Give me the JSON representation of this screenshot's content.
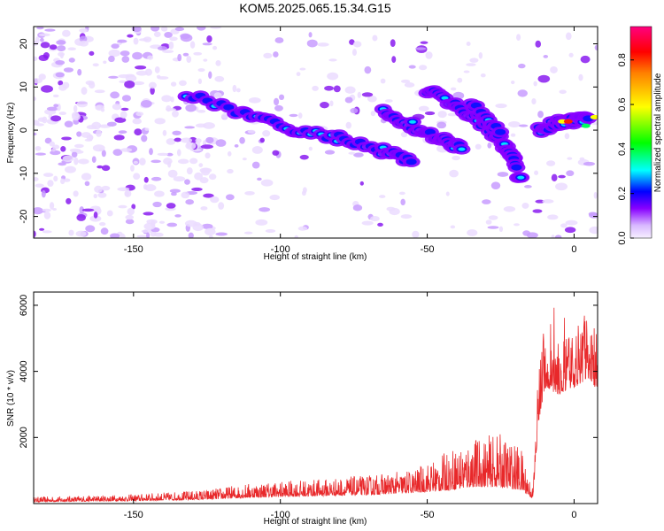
{
  "title": "KOM5.2025.065.15.34.G15",
  "colors": {
    "line": "#e8282a",
    "spectrogram_low": "#e8d4ff",
    "spectrogram_mid": "#7a00e6",
    "spectrogram_high": "#0000ff"
  },
  "chart_data": [
    {
      "type": "heatmap",
      "xlabel": "Height of straight line (km)",
      "ylabel": "Frequency (Hz)",
      "xlim": [
        -184,
        8
      ],
      "ylim": [
        -25,
        24
      ],
      "x_ticks": [
        -150,
        -100,
        -50,
        0
      ],
      "y_ticks": [
        -20,
        -10,
        0,
        10,
        20
      ],
      "colorbar": {
        "label": "Normalized spectral amplitude",
        "range": [
          0,
          0.95
        ],
        "ticks": [
          0.0,
          0.2,
          0.4,
          0.6,
          0.8
        ],
        "tick_labels": [
          "0.0",
          "0.2",
          "0.4",
          "0.6",
          "0.8"
        ],
        "colormap": "rainbow (pale violet - purple - blue - cyan - green - yellow - orange - red - magenta)"
      },
      "features": [
        {
          "name": "descending trace 1",
          "x": [
            -132,
            -112,
            -95,
            -80,
            -65,
            -55
          ],
          "freq": [
            8,
            4,
            0,
            -2,
            -5,
            -7
          ]
        },
        {
          "name": "descending trace 2",
          "x": [
            -65,
            -55,
            -45,
            -38
          ],
          "freq": [
            4,
            1,
            -2,
            -4
          ]
        },
        {
          "name": "descending trace 3",
          "x": [
            -50,
            -40,
            -30,
            -20
          ],
          "freq": [
            9,
            6,
            1,
            -6
          ]
        },
        {
          "name": "descending trace 4",
          "x": [
            -35,
            -28,
            -22,
            -18
          ],
          "freq": [
            6,
            2,
            -5,
            -12
          ]
        },
        {
          "name": "strong band near 0",
          "x": [
            -12,
            -5,
            0,
            5
          ],
          "freq": [
            0,
            2,
            2,
            3
          ]
        }
      ]
    },
    {
      "type": "line",
      "xlabel": "Height of straight line (km)",
      "ylabel": "SNR (10 * v/v)",
      "xlim": [
        -184,
        8
      ],
      "ylim": [
        0,
        6400
      ],
      "x_ticks": [
        -150,
        -100,
        -50,
        0
      ],
      "y_ticks": [
        2000,
        4000,
        6000
      ],
      "envelope": {
        "x": [
          -184,
          -150,
          -125,
          -110,
          -90,
          -70,
          -55,
          -45,
          -35,
          -25,
          -18,
          -14,
          -12,
          -10,
          -5,
          0,
          5,
          8
        ],
        "base": [
          50,
          80,
          120,
          180,
          220,
          260,
          320,
          380,
          500,
          500,
          400,
          150,
          2500,
          3500,
          3300,
          3500,
          3800,
          3400
        ],
        "noise": [
          150,
          200,
          300,
          450,
          500,
          600,
          700,
          1100,
          1500,
          1600,
          1300,
          300,
          2200,
          1800,
          1500,
          1800,
          2200,
          1600
        ]
      }
    }
  ]
}
